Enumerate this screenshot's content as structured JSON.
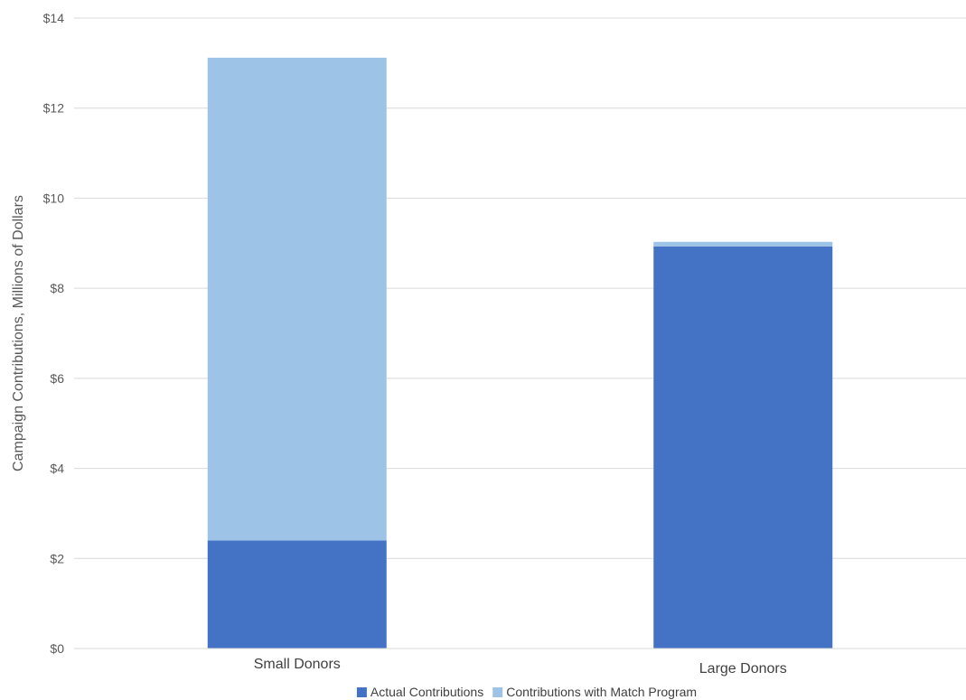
{
  "chart_data": {
    "type": "bar",
    "stacked": true,
    "categories": [
      "Small Donors",
      "Large Donors"
    ],
    "series": [
      {
        "name": "Actual Contributions",
        "color": "#4472C4",
        "values": [
          2.4,
          8.93
        ]
      },
      {
        "name": "Contributions with Match Program",
        "color": "#9DC3E6",
        "values": [
          10.72,
          0.1
        ]
      }
    ],
    "title": "",
    "xlabel": "",
    "ylabel": "Campaign Contributions, Millions of Dollars",
    "ylim": [
      0,
      14
    ],
    "yticks": [
      0,
      2,
      4,
      6,
      8,
      10,
      12,
      14
    ],
    "ytick_labels": [
      "$0",
      "$2",
      "$4",
      "$6",
      "$8",
      "$10",
      "$12",
      "$14"
    ],
    "grid": true,
    "legend_position": "bottom"
  }
}
